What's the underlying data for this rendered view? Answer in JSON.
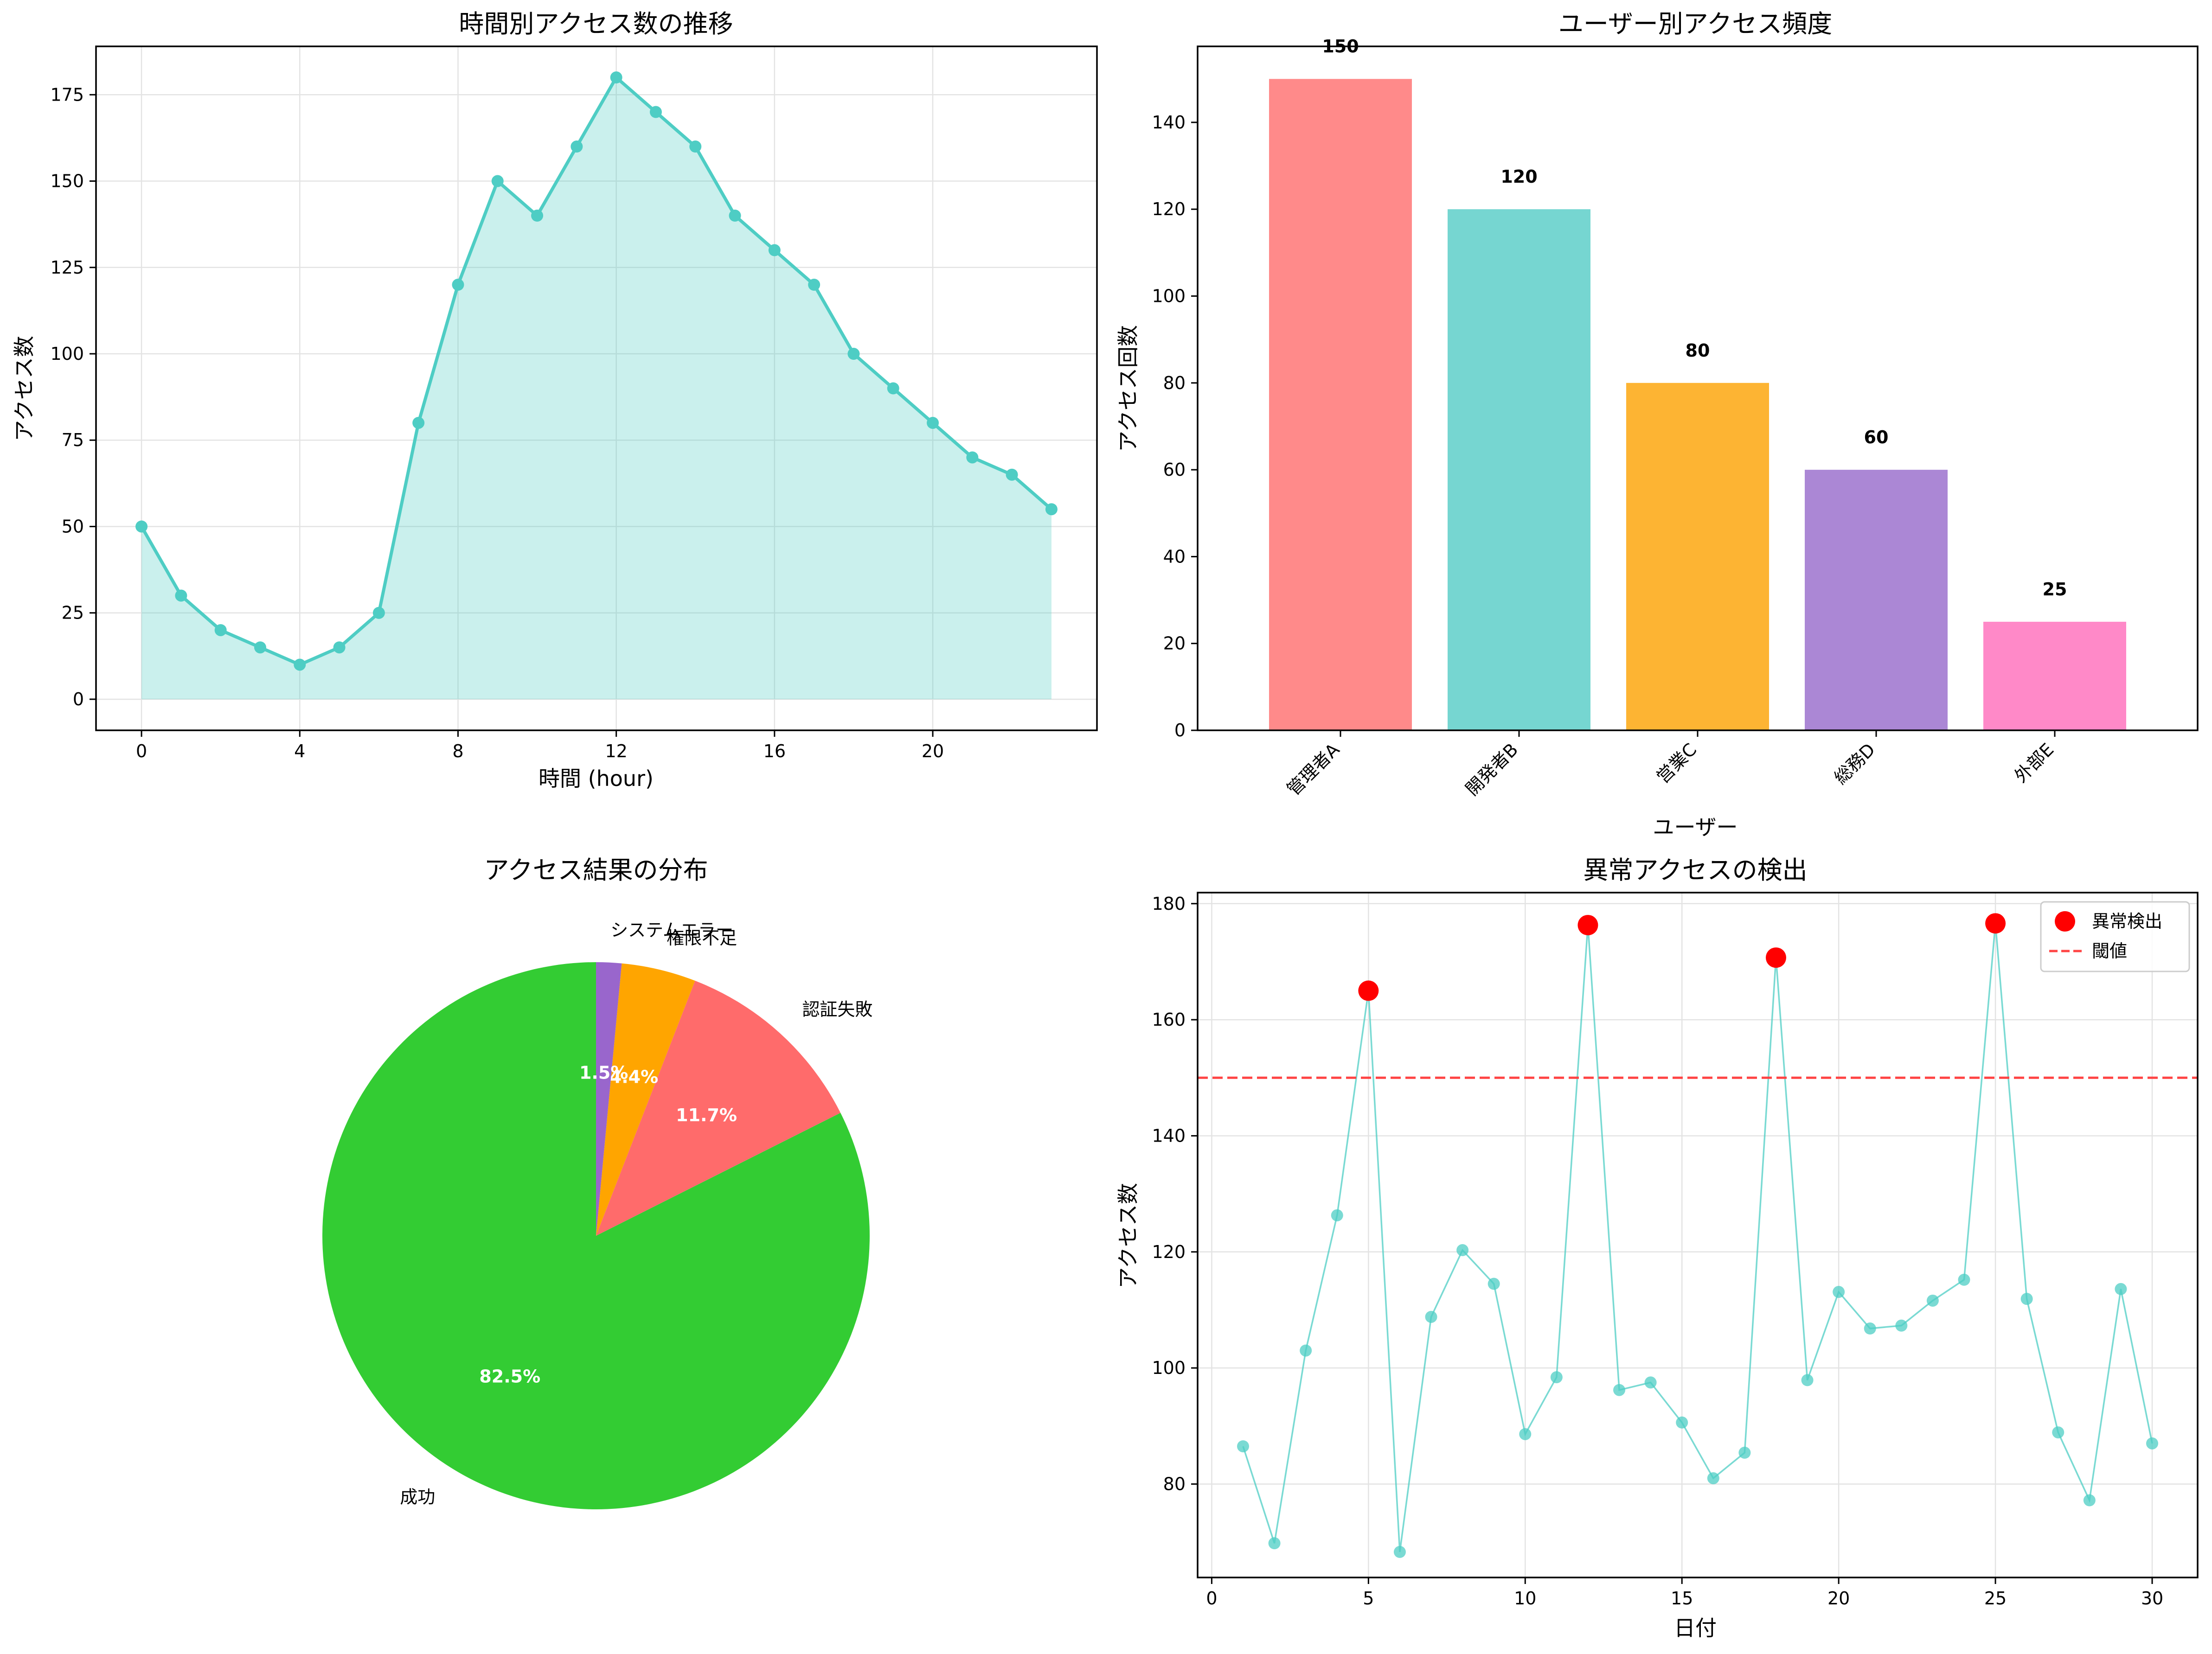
{
  "chart_data": [
    {
      "type": "area",
      "title": "時間別アクセス数の推移",
      "xlabel": "時間 (hour)",
      "ylabel": "アクセス数",
      "x": [
        0,
        1,
        2,
        3,
        4,
        5,
        6,
        7,
        8,
        9,
        10,
        11,
        12,
        13,
        14,
        15,
        16,
        17,
        18,
        19,
        20,
        21,
        22,
        23
      ],
      "values": [
        50,
        30,
        20,
        15,
        10,
        15,
        25,
        80,
        120,
        150,
        140,
        160,
        180,
        170,
        160,
        140,
        130,
        120,
        100,
        90,
        80,
        70,
        65,
        55
      ],
      "xticks": [
        "0",
        "4",
        "8",
        "12",
        "16",
        "20"
      ],
      "yticks": [
        "0",
        "25",
        "50",
        "75",
        "100",
        "125",
        "150",
        "175"
      ],
      "xlim": [
        -1.15,
        24.15
      ],
      "ylim": [
        -9,
        189
      ],
      "color": "#4ECDC4",
      "grid": true
    },
    {
      "type": "bar",
      "title": "ユーザー別アクセス頻度",
      "xlabel": "ユーザー",
      "ylabel": "アクセス回数",
      "categories": [
        "管理者A",
        "開発者B",
        "営業C",
        "総務D",
        "外部E"
      ],
      "values": [
        150,
        120,
        80,
        60,
        25
      ],
      "value_labels": [
        "150",
        "120",
        "80",
        "60",
        "25"
      ],
      "colors": [
        "#FF8A8A",
        "#76D6D1",
        "#FDB433",
        "#AB87D5",
        "#FF89C8"
      ],
      "yticks": [
        "0",
        "20",
        "40",
        "60",
        "80",
        "100",
        "120",
        "140"
      ],
      "ylim": [
        0,
        157.5
      ],
      "grid": false
    },
    {
      "type": "pie",
      "title": "アクセス結果の分布",
      "labels": [
        "成功",
        "認証失敗",
        "権限不足",
        "システムエラー"
      ],
      "values": [
        82.5,
        11.7,
        4.4,
        1.5
      ],
      "pct_labels": [
        "82.5%",
        "11.7%",
        "4.4%",
        "1.5%"
      ],
      "colors": [
        "#33CC33",
        "#FF6B6B",
        "#FFA500",
        "#9966CC"
      ]
    },
    {
      "type": "line",
      "title": "異常アクセスの検出",
      "xlabel": "日付",
      "ylabel": "アクセス数",
      "x": [
        1,
        2,
        3,
        4,
        5,
        6,
        7,
        8,
        9,
        10,
        11,
        12,
        13,
        14,
        15,
        16,
        17,
        18,
        19,
        20,
        21,
        22,
        23,
        24,
        25,
        26,
        27,
        28,
        29,
        30
      ],
      "values": [
        86.5,
        69.8,
        103,
        126.3,
        165,
        68.3,
        108.8,
        120.3,
        114.5,
        88.6,
        98.4,
        176.3,
        96.2,
        97.5,
        90.6,
        81,
        85.4,
        170.7,
        97.9,
        113.1,
        106.8,
        107.3,
        111.6,
        115.2,
        176.6,
        111.9,
        88.9,
        77.2,
        113.6,
        87
      ],
      "anomalies_x": [
        5,
        12,
        18,
        25
      ],
      "anomalies_y": [
        165,
        176.3,
        170.7,
        176.6
      ],
      "threshold": 150,
      "xticks": [
        "0",
        "5",
        "10",
        "15",
        "20",
        "25",
        "30"
      ],
      "yticks": [
        "80",
        "100",
        "120",
        "140",
        "160",
        "180"
      ],
      "xlim": [
        -0.45,
        31.45
      ],
      "ylim": [
        63.9,
        181.9
      ],
      "line_color": "#4ECDC4",
      "anomaly_color": "#FF0000",
      "threshold_color": "#FF4444",
      "legend": {
        "position": "top-right",
        "entries": [
          "異常検出",
          "閾値"
        ]
      },
      "grid": true
    }
  ]
}
